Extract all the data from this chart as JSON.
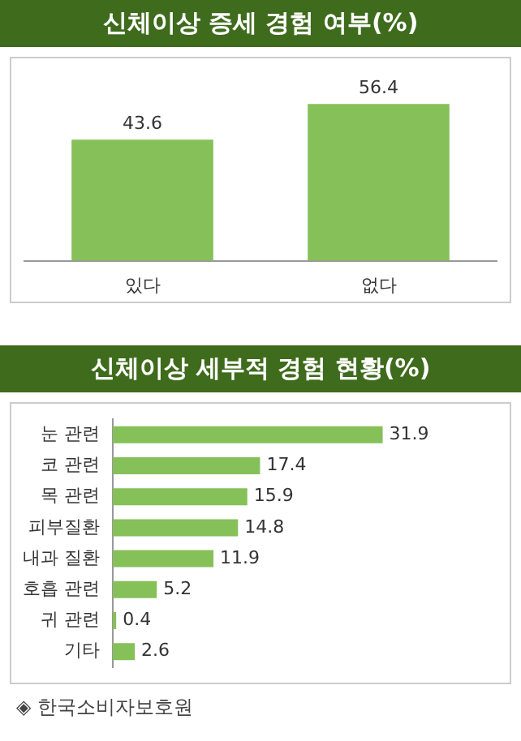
{
  "chart_data": [
    {
      "type": "bar",
      "title": "신체이상 증세 경험 여부(%)",
      "categories": [
        "있다",
        "없다"
      ],
      "values": [
        43.6,
        56.4
      ],
      "color": "#86c058",
      "data_labels": true,
      "grid": false
    },
    {
      "type": "bar",
      "orientation": "horizontal",
      "title": "신체이상 세부적 경험 현황(%)",
      "categories": [
        "눈 관련",
        "코 관련",
        "목 관련",
        "피부질환",
        "내과 질환",
        "호흡 관련",
        "귀 관련",
        "기타"
      ],
      "values": [
        31.9,
        17.4,
        15.9,
        14.8,
        11.9,
        5.2,
        0.4,
        2.6
      ],
      "color": "#86c058",
      "data_labels": true,
      "grid": false,
      "annotations": [
        "◈ 한국소비자보호원"
      ]
    }
  ]
}
